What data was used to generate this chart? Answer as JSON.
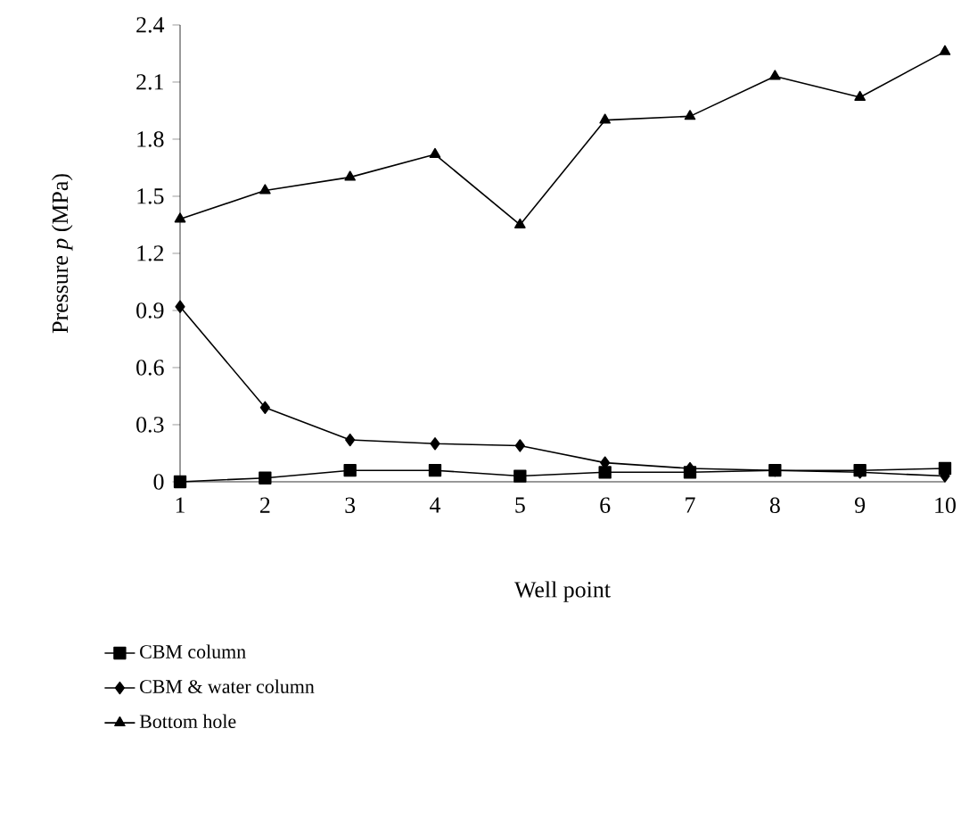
{
  "chart_data": {
    "type": "line",
    "xlabel": "Well point",
    "ylabel": "Pressure *p* (MPa)",
    "x": [
      1,
      2,
      3,
      4,
      5,
      6,
      7,
      8,
      9,
      10
    ],
    "xlim": [
      1,
      10
    ],
    "xticks": [
      1,
      2,
      3,
      4,
      5,
      6,
      7,
      8,
      9,
      10
    ],
    "ylim": [
      0,
      2.4
    ],
    "yticks": [
      0,
      0.3,
      0.6,
      0.9,
      1.2,
      1.5,
      1.8,
      2.1,
      2.4
    ],
    "legend": "bottom",
    "grid": false,
    "line_style": "solid",
    "series": [
      {
        "name": "CBM column",
        "color": "#000000",
        "marker": "square",
        "values": [
          0,
          0.02,
          0.06,
          0.06,
          0.03,
          0.05,
          0.05,
          0.06,
          0.06,
          0.07
        ]
      },
      {
        "name": "CBM & water column",
        "color": "#000000",
        "marker": "diamond",
        "values": [
          0.92,
          0.39,
          0.22,
          0.2,
          0.19,
          0.1,
          0.07,
          0.06,
          0.05,
          0.03
        ]
      },
      {
        "name": "Bottom hole",
        "color": "#000000",
        "marker": "triangle",
        "values": [
          1.38,
          1.53,
          1.6,
          1.72,
          1.35,
          1.9,
          1.92,
          2.13,
          2.02,
          2.26
        ]
      }
    ]
  }
}
